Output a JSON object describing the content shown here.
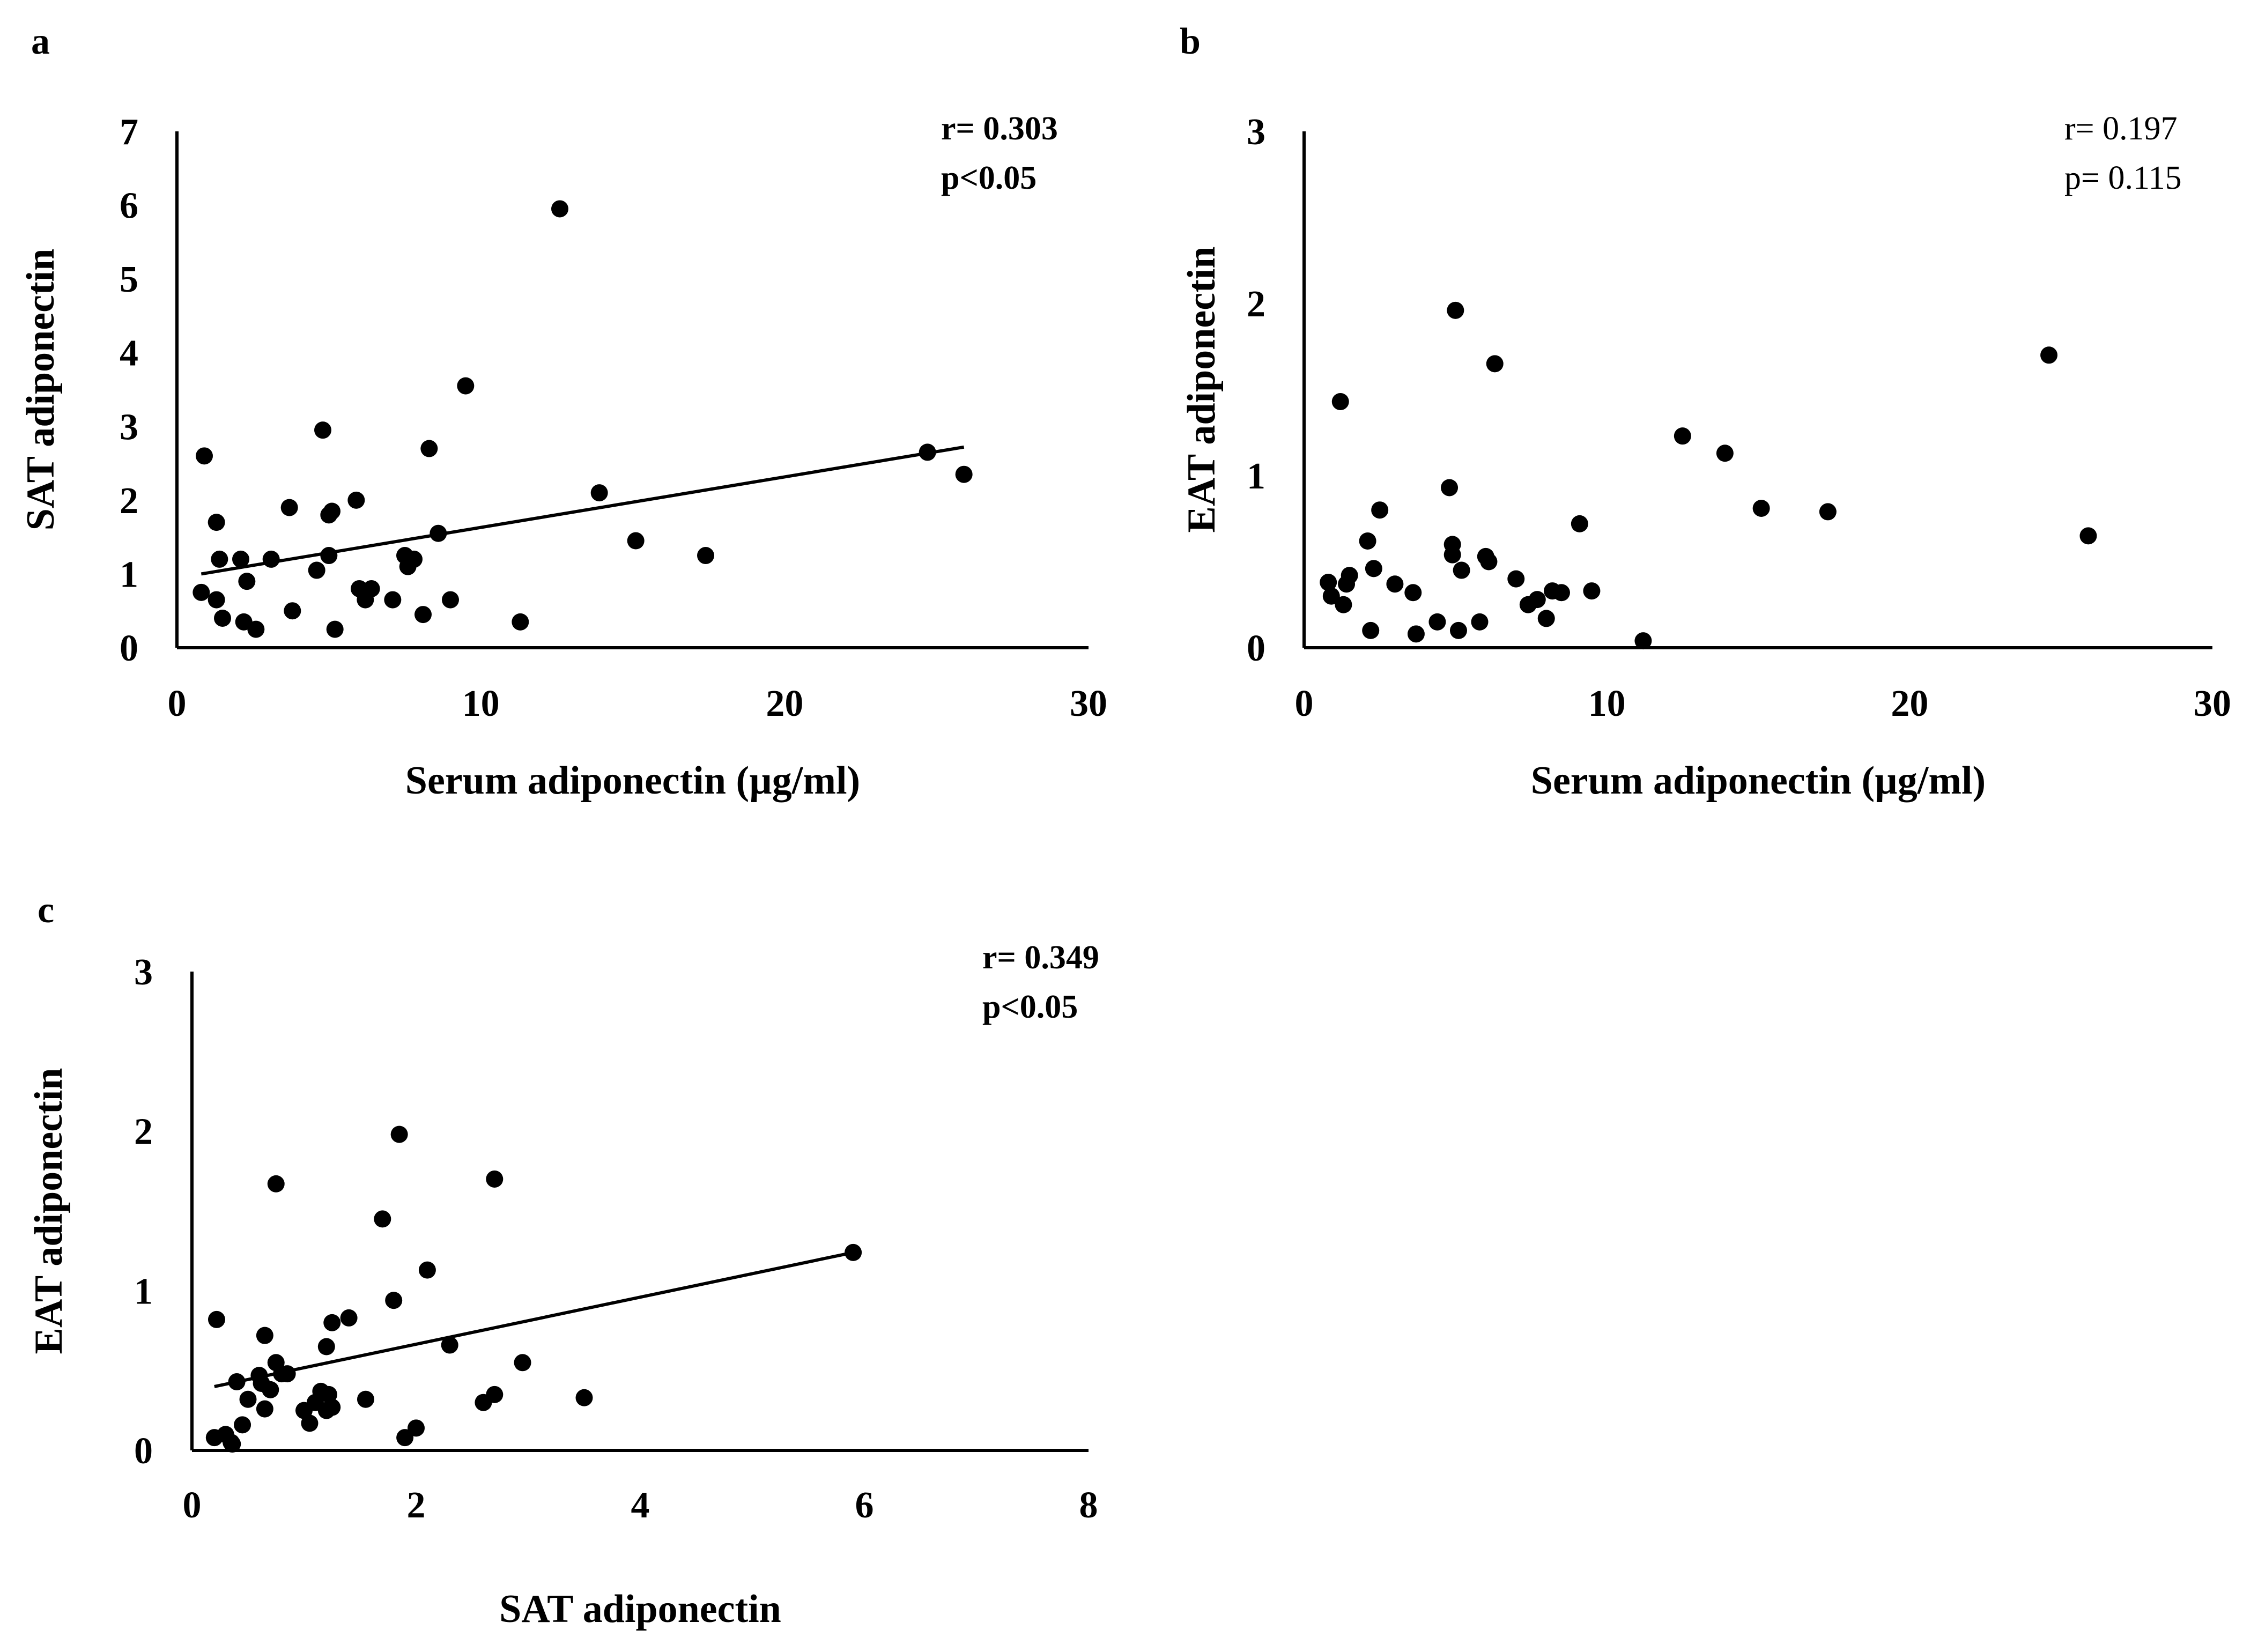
{
  "chart_data": [
    {
      "panel": "a",
      "type": "scatter",
      "title": "",
      "xlabel": "Serum adiponectin (µg/ml)",
      "ylabel": "SAT adiponectin",
      "xlim": [
        0,
        30
      ],
      "ylim": [
        0,
        7
      ],
      "xticks": [
        "0",
        "10",
        "20",
        "30"
      ],
      "yticks": [
        "0",
        "1",
        "2",
        "3",
        "4",
        "5",
        "6",
        "7"
      ],
      "stats": [
        "r= 0.303",
        "p<0.05"
      ],
      "stats_bold": true,
      "trendline": {
        "x": [
          0.8,
          25.9
        ],
        "y": [
          1.0,
          2.72
        ]
      },
      "points": {
        "x": [
          0.8,
          0.9,
          1.3,
          1.3,
          1.4,
          1.5,
          2.1,
          2.2,
          2.3,
          2.6,
          3.1,
          3.7,
          3.8,
          4.6,
          4.8,
          5.0,
          5.0,
          5.1,
          5.2,
          5.9,
          6.0,
          6.2,
          6.4,
          7.1,
          7.5,
          7.6,
          7.8,
          8.1,
          8.3,
          8.6,
          9.0,
          9.5,
          11.3,
          12.6,
          13.9,
          15.1,
          17.4,
          24.7,
          25.9
        ],
        "y": [
          0.75,
          2.6,
          0.65,
          1.7,
          1.2,
          0.4,
          1.2,
          0.35,
          0.9,
          0.25,
          1.2,
          1.9,
          0.5,
          1.05,
          2.95,
          1.25,
          1.8,
          1.85,
          0.25,
          2.0,
          0.8,
          0.65,
          0.8,
          0.65,
          1.25,
          1.1,
          1.2,
          0.45,
          2.7,
          1.55,
          0.65,
          3.55,
          0.35,
          5.95,
          2.1,
          1.45,
          1.25,
          2.65,
          2.35
        ]
      }
    },
    {
      "panel": "b",
      "type": "scatter",
      "title": "",
      "xlabel": "Serum adiponectin (µg/ml)",
      "ylabel": "EAT adiponectin",
      "xlim": [
        0,
        30
      ],
      "ylim": [
        0,
        3
      ],
      "xticks": [
        "0",
        "10",
        "20",
        "30"
      ],
      "yticks": [
        "0",
        "1",
        "2",
        "3"
      ],
      "stats": [
        "r= 0.197",
        "p= 0.115"
      ],
      "stats_bold": false,
      "trendline": null,
      "points": {
        "x": [
          0.8,
          0.9,
          1.2,
          1.3,
          1.4,
          1.5,
          2.1,
          2.2,
          2.3,
          2.5,
          3.0,
          3.6,
          3.7,
          4.4,
          4.8,
          4.9,
          4.9,
          5.0,
          5.1,
          5.2,
          5.8,
          6.0,
          6.1,
          6.3,
          7.0,
          7.4,
          7.7,
          8.0,
          8.2,
          8.5,
          9.1,
          9.5,
          11.2,
          12.5,
          13.9,
          15.1,
          17.3,
          24.6,
          25.9
        ],
        "y": [
          0.38,
          0.3,
          1.43,
          0.25,
          0.37,
          0.42,
          0.62,
          0.1,
          0.46,
          0.8,
          0.37,
          0.32,
          0.08,
          0.15,
          0.93,
          0.54,
          0.6,
          1.96,
          0.1,
          0.45,
          0.15,
          0.53,
          0.5,
          1.65,
          0.4,
          0.25,
          0.28,
          0.17,
          0.33,
          0.32,
          0.72,
          0.33,
          0.04,
          1.23,
          1.13,
          0.81,
          0.79,
          1.7,
          0.65
        ]
      }
    },
    {
      "panel": "c",
      "type": "scatter",
      "title": "",
      "xlabel": "SAT adiponectin",
      "ylabel": "EAT adiponectin",
      "xlim": [
        0,
        8
      ],
      "ylim": [
        0,
        3
      ],
      "xticks": [
        "0",
        "2",
        "4",
        "6",
        "8"
      ],
      "yticks": [
        "0",
        "1",
        "2",
        "3"
      ],
      "stats": [
        "r= 0.349",
        "p<0.05"
      ],
      "stats_bold": true,
      "trendline": {
        "x": [
          0.2,
          5.9
        ],
        "y": [
          0.4,
          1.24
        ]
      },
      "points": {
        "x": [
          0.2,
          0.22,
          0.3,
          0.35,
          0.36,
          0.4,
          0.45,
          0.5,
          0.6,
          0.62,
          0.65,
          0.65,
          0.7,
          0.75,
          0.75,
          0.8,
          0.85,
          1.0,
          1.05,
          1.1,
          1.15,
          1.2,
          1.2,
          1.22,
          1.25,
          1.25,
          1.4,
          1.55,
          1.7,
          1.8,
          1.85,
          1.9,
          2.0,
          2.1,
          2.3,
          2.6,
          2.7,
          2.7,
          2.95,
          3.5,
          5.9
        ],
        "y": [
          0.08,
          0.82,
          0.1,
          0.05,
          0.04,
          0.43,
          0.16,
          0.32,
          0.47,
          0.42,
          0.26,
          0.72,
          0.38,
          1.67,
          0.55,
          0.48,
          0.48,
          0.25,
          0.17,
          0.3,
          0.37,
          0.65,
          0.25,
          0.35,
          0.8,
          0.27,
          0.83,
          0.32,
          1.45,
          0.94,
          1.98,
          0.08,
          0.14,
          1.13,
          0.66,
          0.3,
          1.7,
          0.35,
          0.55,
          0.33,
          1.24
        ]
      }
    }
  ]
}
